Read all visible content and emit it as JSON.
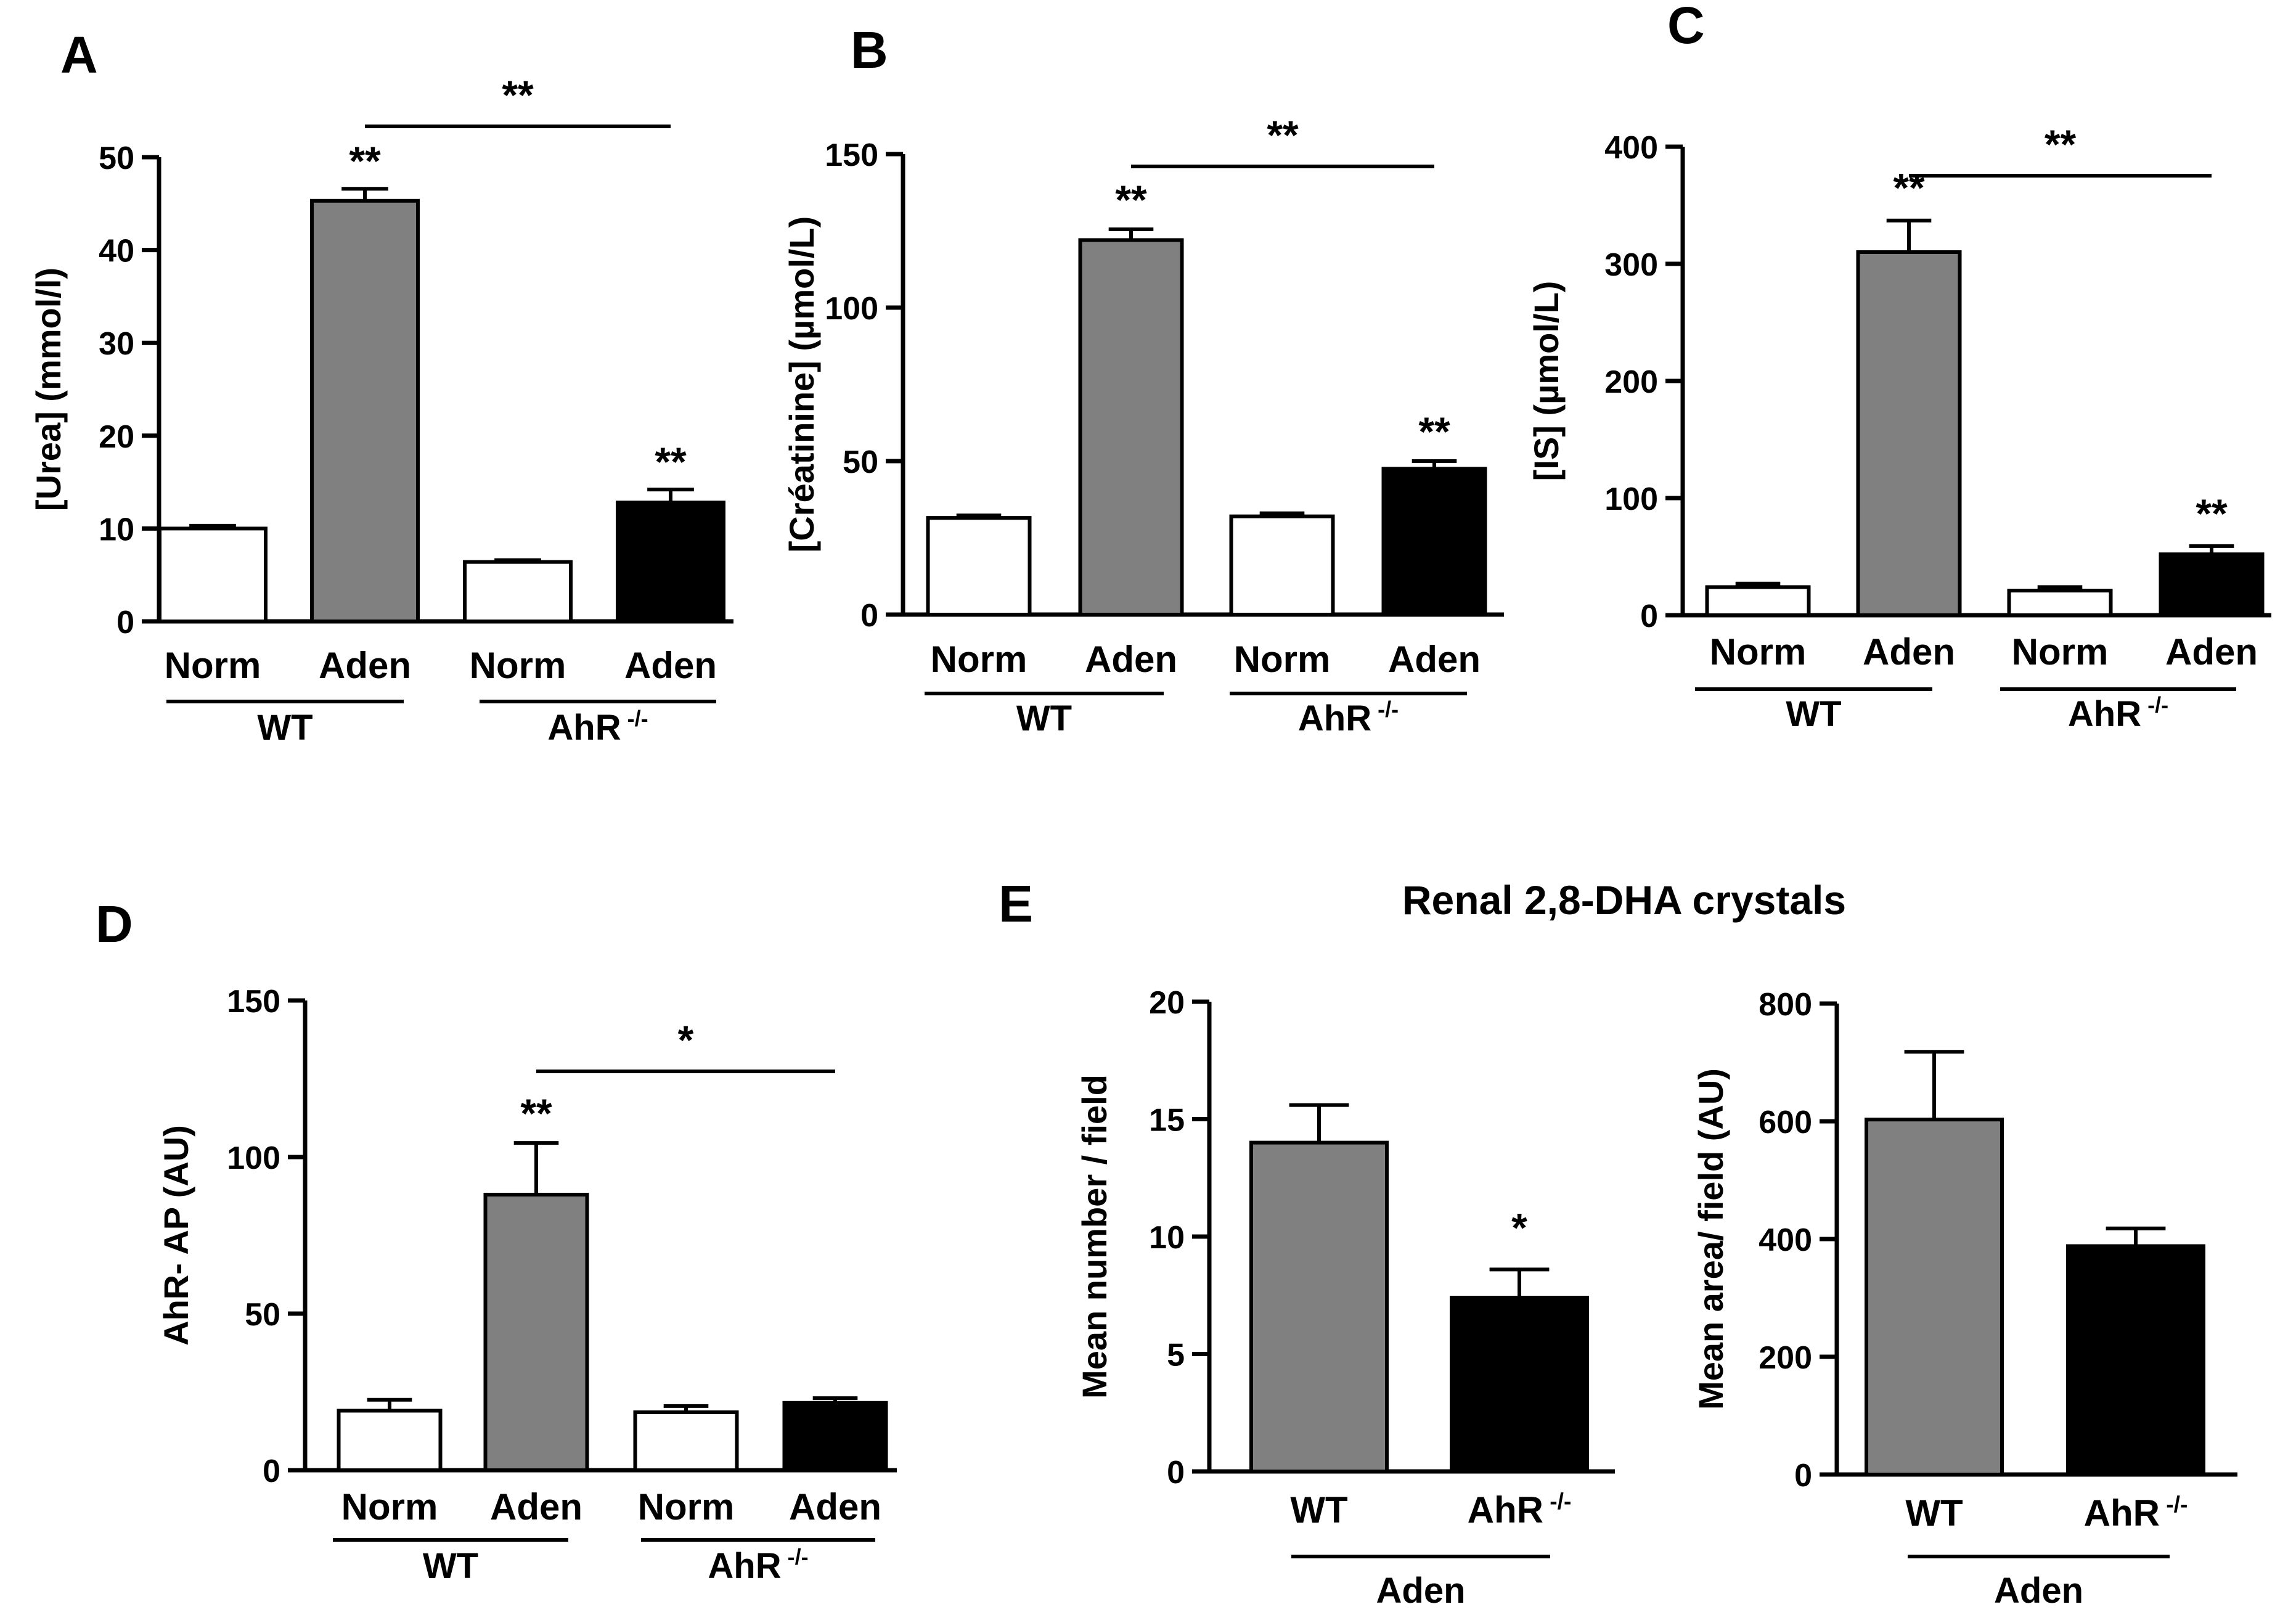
{
  "chart_data": [
    {
      "type": "bar",
      "panel": "A",
      "ylabel": "[Urea] (mmol/l)",
      "ylim": [
        0,
        50
      ],
      "yticks": [
        0,
        10,
        20,
        30,
        40,
        50
      ],
      "categories": [
        "Norm",
        "Aden",
        "Norm",
        "Aden"
      ],
      "values": [
        10,
        45.3,
        6.4,
        12.8
      ],
      "errors": [
        0.3,
        1.3,
        0.2,
        1.4
      ],
      "colors": [
        "#ffffff",
        "#808080",
        "#ffffff",
        "#000000"
      ],
      "groups": [
        {
          "label": "WT"
        },
        {
          "label": "AhR",
          "sup": "-/-"
        }
      ],
      "bar_annotations": [
        "",
        "**",
        "",
        "**"
      ],
      "comparison": "**"
    },
    {
      "type": "bar",
      "panel": "B",
      "ylabel": "[Créatinine] (µmol/L)",
      "ylim": [
        0,
        150
      ],
      "yticks": [
        0,
        50,
        100,
        150
      ],
      "categories": [
        "Norm",
        "Aden",
        "Norm",
        "Aden"
      ],
      "values": [
        31.5,
        122,
        32,
        47.5
      ],
      "errors": [
        0.8,
        3.5,
        1,
        2.5
      ],
      "colors": [
        "#ffffff",
        "#808080",
        "#ffffff",
        "#000000"
      ],
      "groups": [
        {
          "label": "WT"
        },
        {
          "label": "AhR",
          "sup": "-/-"
        }
      ],
      "bar_annotations": [
        "",
        "**",
        "",
        "**"
      ],
      "comparison": "**"
    },
    {
      "type": "bar",
      "panel": "C",
      "ylabel": "[IS] (µmol/L)",
      "ylim": [
        0,
        400
      ],
      "yticks": [
        0,
        100,
        200,
        300,
        400
      ],
      "categories": [
        "Norm",
        "Aden",
        "Norm",
        "Aden"
      ],
      "values": [
        24,
        310,
        21,
        52
      ],
      "errors": [
        3,
        27,
        3,
        7
      ],
      "colors": [
        "#ffffff",
        "#808080",
        "#ffffff",
        "#000000"
      ],
      "groups": [
        {
          "label": "WT"
        },
        {
          "label": "AhR",
          "sup": "-/-"
        }
      ],
      "bar_annotations": [
        "",
        "**",
        "",
        "**"
      ],
      "comparison": "**"
    },
    {
      "type": "bar",
      "panel": "D",
      "ylabel": "AhR- AP (AU)",
      "ylim": [
        0,
        150
      ],
      "yticks": [
        0,
        50,
        100,
        150
      ],
      "categories": [
        "Norm",
        "Aden",
        "Norm",
        "Aden"
      ],
      "values": [
        19,
        88,
        18.5,
        21.5
      ],
      "errors": [
        3.5,
        16.5,
        2,
        1.5
      ],
      "colors": [
        "#ffffff",
        "#808080",
        "#ffffff",
        "#000000"
      ],
      "groups": [
        {
          "label": "WT"
        },
        {
          "label": "AhR",
          "sup": "-/-"
        }
      ],
      "bar_annotations": [
        "",
        "**",
        "",
        ""
      ],
      "comparison": "*"
    },
    {
      "type": "bar",
      "panel": "E",
      "title": "Renal 2,8-DHA crystals",
      "ylabel": "Mean number / field",
      "ylim": [
        0,
        20
      ],
      "yticks": [
        0,
        5,
        10,
        15,
        20
      ],
      "categories": [
        {
          "label": "WT"
        },
        {
          "label": "AhR",
          "sup": "-/-"
        }
      ],
      "values": [
        14,
        7.4
      ],
      "errors": [
        1.6,
        1.2
      ],
      "colors": [
        "#808080",
        "#000000"
      ],
      "group": "Aden",
      "bar_annotations": [
        "",
        "*"
      ]
    },
    {
      "type": "bar",
      "ylabel": "Mean area/ field (AU)",
      "ylim": [
        0,
        800
      ],
      "yticks": [
        0,
        200,
        400,
        600,
        800
      ],
      "categories": [
        {
          "label": "WT"
        },
        {
          "label": "AhR",
          "sup": "-/-"
        }
      ],
      "values": [
        603,
        388
      ],
      "errors": [
        115,
        30
      ],
      "colors": [
        "#808080",
        "#000000"
      ],
      "group": "Aden",
      "bar_annotations": [
        "",
        ""
      ]
    }
  ]
}
